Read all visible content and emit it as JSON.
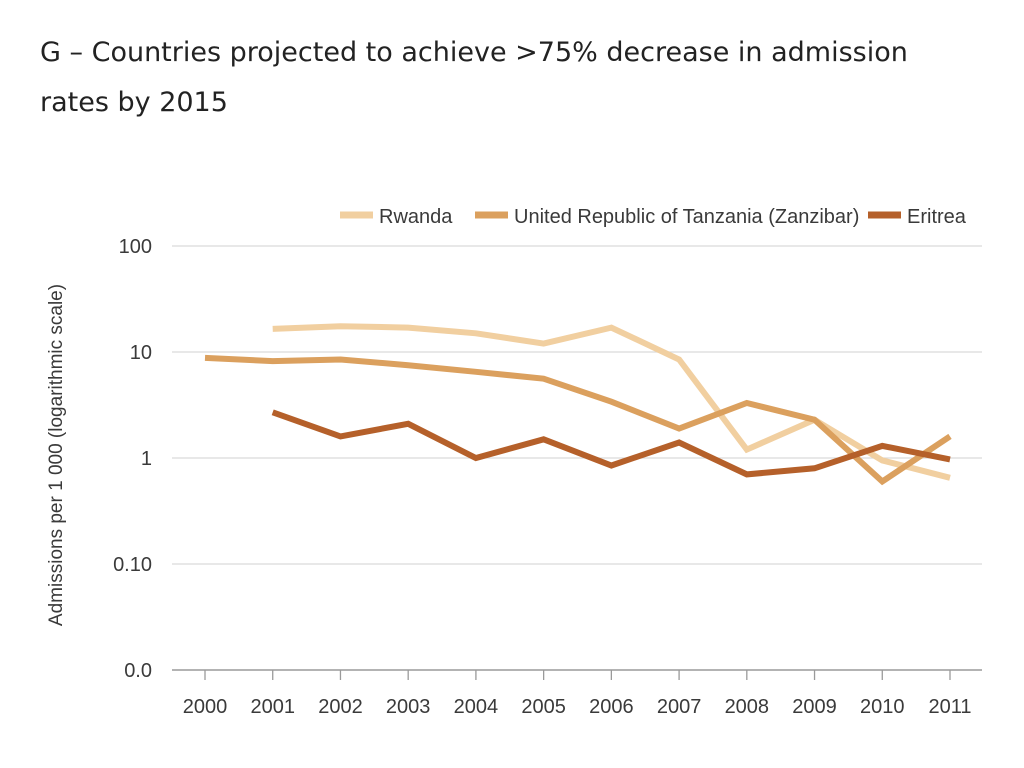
{
  "title": "G – Countries projected to achieve >75% decrease in admission rates by 2015",
  "chart_data": {
    "type": "line",
    "title": "G – Countries projected to achieve >75% decrease in admission rates by 2015",
    "ylabel": "Admissions per 1 000 (logarithmic scale)",
    "xlabel": "",
    "yscale": "log",
    "ylim": [
      0.01,
      100
    ],
    "yticks": [
      {
        "value": 100,
        "label": "100"
      },
      {
        "value": 10,
        "label": "10"
      },
      {
        "value": 1,
        "label": "1"
      },
      {
        "value": 0.1,
        "label": "0.10"
      },
      {
        "value": 0.01,
        "label": "0.0"
      }
    ],
    "x": [
      "2000",
      "2001",
      "2002",
      "2003",
      "2004",
      "2005",
      "2006",
      "2007",
      "2008",
      "2009",
      "2010",
      "2011"
    ],
    "grid": true,
    "legend_position": "top-right",
    "series": [
      {
        "name": "Rwanda",
        "color": "#f1cfa0",
        "values": [
          null,
          16.5,
          17.5,
          17,
          15,
          12,
          17,
          8.5,
          1.2,
          2.3,
          0.95,
          0.65
        ]
      },
      {
        "name": "United Republic of Tanzania (Zanzibar)",
        "color": "#dba05e",
        "values": [
          8.8,
          8.2,
          8.5,
          7.5,
          6.5,
          5.6,
          3.4,
          1.9,
          3.3,
          2.3,
          0.6,
          1.6
        ]
      },
      {
        "name": "Eritrea",
        "color": "#b5602a",
        "values": [
          null,
          2.7,
          1.6,
          2.1,
          1.0,
          1.5,
          0.85,
          1.4,
          0.7,
          0.8,
          1.3,
          0.97
        ]
      }
    ]
  }
}
